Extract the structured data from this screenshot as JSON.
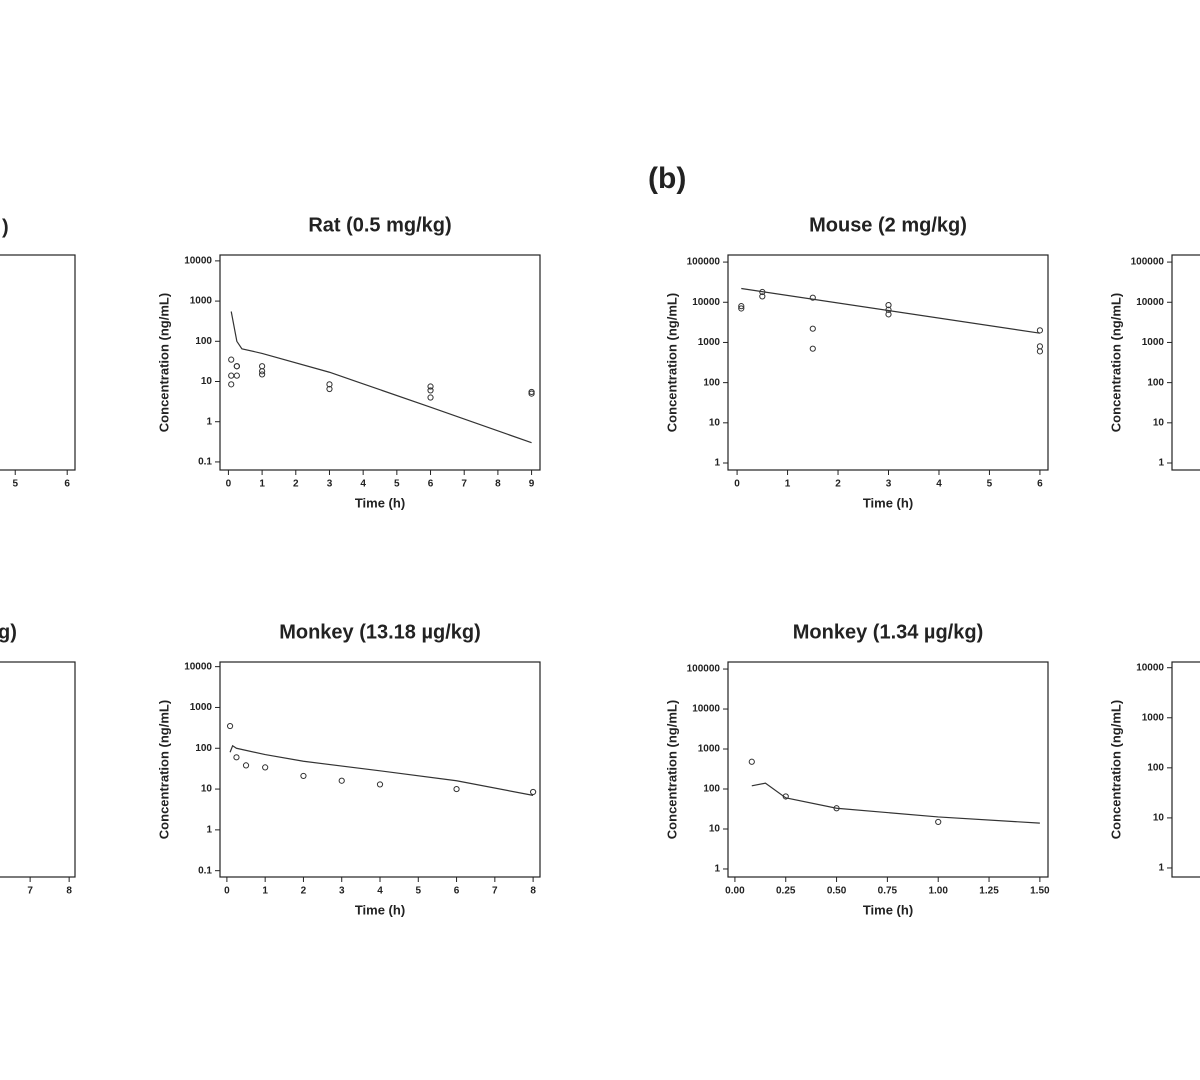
{
  "panel_label": "(b)",
  "chart_data": [
    {
      "type": "scatter",
      "title": ")",
      "xlim": [
        -0.18,
        6.15
      ],
      "xticks": [
        5,
        6
      ]
    },
    {
      "type": "scatter",
      "title": "Rat (0.5 mg/kg)",
      "xlabel": "Time (h)",
      "ylabel": "Concentration (ng/mL)",
      "ylog": true,
      "xlim": [
        -0.25,
        9.25
      ],
      "xticks": [
        0,
        1,
        2,
        3,
        4,
        5,
        6,
        7,
        8,
        9
      ],
      "ylim": [
        0.063,
        14000
      ],
      "yticks": [
        0.1,
        1,
        10,
        100,
        1000,
        10000
      ],
      "points": {
        "x": [
          0.083,
          0.083,
          0.083,
          0.25,
          0.25,
          0.25,
          1,
          1,
          1,
          3,
          3,
          6,
          6,
          6,
          9,
          9
        ],
        "y": [
          35,
          14,
          8.5,
          24,
          24,
          14,
          24,
          18,
          15,
          8.5,
          6.5,
          7.5,
          6,
          4,
          5.5,
          5
        ]
      },
      "line": {
        "x": [
          0.083,
          0.25,
          0.4,
          1,
          3,
          6,
          9
        ],
        "y": [
          550,
          100,
          65,
          50,
          17,
          2.3,
          0.3
        ]
      }
    },
    {
      "type": "scatter",
      "title": "Mouse (2 mg/kg)",
      "xlabel": "Time (h)",
      "ylabel": "Concentration (ng/mL)",
      "ylog": true,
      "xlim": [
        -0.18,
        6.16
      ],
      "xticks": [
        0,
        1,
        2,
        3,
        4,
        5,
        6
      ],
      "ylim": [
        0.67,
        150000
      ],
      "yticks": [
        1,
        10,
        100,
        1000,
        10000,
        100000
      ],
      "points": {
        "x": [
          0.083,
          0.083,
          0.5,
          0.5,
          1.5,
          1.5,
          1.5,
          3,
          3,
          3,
          6,
          6,
          6
        ],
        "y": [
          8000,
          7000,
          18000,
          14000,
          13000,
          2200,
          700,
          8500,
          6500,
          5000,
          2000,
          800,
          600
        ]
      },
      "line": {
        "x": [
          0.083,
          6
        ],
        "y": [
          22000,
          1700
        ]
      }
    },
    {
      "type": "scatter",
      "ylabel": "Concentration (ng/mL)",
      "ylog": true,
      "ylim": [
        0.67,
        150000
      ],
      "yticks": [
        1,
        10,
        100,
        1000,
        10000,
        100000
      ]
    },
    {
      "type": "scatter",
      "title": "g)",
      "xlim": [
        -0.18,
        8.15
      ],
      "xticks": [
        7,
        8
      ]
    },
    {
      "type": "scatter",
      "title": "Monkey (13.18 µg/kg)",
      "xlabel": "Time (h)",
      "ylabel": "Concentration (ng/mL)",
      "ylog": true,
      "xlim": [
        -0.18,
        8.18
      ],
      "xticks": [
        0,
        1,
        2,
        3,
        4,
        5,
        6,
        7,
        8
      ],
      "ylim": [
        0.07,
        13000
      ],
      "yticks": [
        0.1,
        1,
        10,
        100,
        1000,
        10000
      ],
      "points": {
        "x": [
          0.083,
          0.25,
          0.5,
          1,
          2,
          3,
          4,
          6,
          8
        ],
        "y": [
          350,
          60,
          38,
          34,
          21,
          16,
          13,
          10,
          8.5
        ]
      },
      "line": {
        "x": [
          0.083,
          0.15,
          0.25,
          1,
          2,
          4,
          6,
          8
        ],
        "y": [
          80,
          115,
          100,
          70,
          48,
          28,
          16,
          7
        ]
      }
    },
    {
      "type": "scatter",
      "title": "Monkey (1.34 µg/kg)",
      "xlabel": "Time (h)",
      "ylabel": "Concentration (ng/mL)",
      "ylog": true,
      "xlim": [
        -0.034,
        1.54
      ],
      "xticks": [
        {
          "value": 0,
          "label": "0.00"
        },
        0.25,
        {
          "value": 0.5,
          "label": "0.50"
        },
        0.75,
        {
          "value": 1,
          "label": "1.00"
        },
        1.25,
        {
          "value": 1.5,
          "label": "1.50"
        }
      ],
      "ylim": [
        0.63,
        150000
      ],
      "yticks": [
        1,
        10,
        100,
        1000,
        10000,
        100000
      ],
      "points": {
        "x": [
          0.083,
          0.25,
          0.5,
          1
        ],
        "y": [
          480,
          65,
          33,
          15
        ]
      },
      "line": {
        "x": [
          0.083,
          0.15,
          0.25,
          0.5,
          1,
          1.5
        ],
        "y": [
          120,
          140,
          60,
          33,
          20,
          14
        ]
      }
    },
    {
      "type": "scatter",
      "ylabel": "Concentration (ng/mL)",
      "ylog": true,
      "ylim": [
        0.66,
        13000
      ],
      "yticks": [
        1,
        10,
        100,
        1000,
        10000
      ]
    }
  ]
}
